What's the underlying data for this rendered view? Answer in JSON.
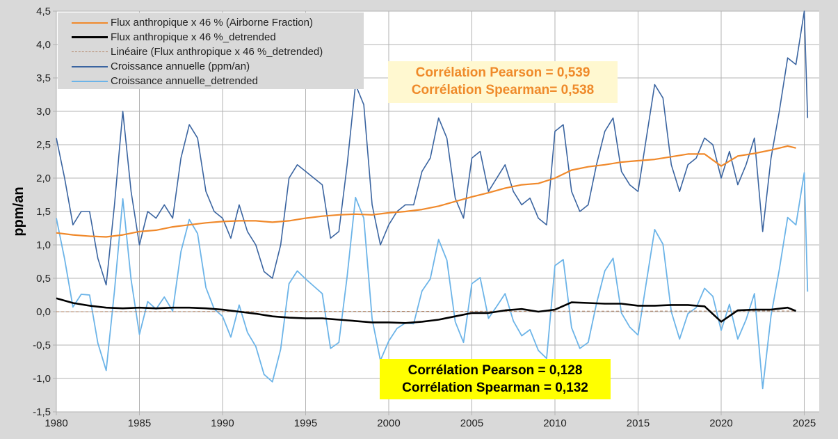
{
  "chart_data": {
    "type": "line",
    "ylabel": "ppm/an",
    "xlabel": "",
    "xlim": [
      1980,
      2025.9
    ],
    "ylim": [
      -1.5,
      4.5
    ],
    "grid": true,
    "legend_placement": "top-left",
    "x_ticks": [
      "1980",
      "1985",
      "1990",
      "1995",
      "2000",
      "2005",
      "2010",
      "2015",
      "2020",
      "2025"
    ],
    "y_ticks": [
      "4,5",
      "4,0",
      "3,5",
      "3,0",
      "2,5",
      "2,0",
      "1,5",
      "1,0",
      "0,5",
      "0,0",
      "-0,5",
      "-1,0",
      "-1,5"
    ],
    "series": [
      {
        "name": "Flux anthropique x 46 % (Airborne  Fraction)",
        "color": "#f0892b",
        "style": "solid",
        "x": [
          1980,
          1981,
          1982,
          1983,
          1984,
          1985,
          1986,
          1987,
          1988,
          1989,
          1990,
          1991,
          1992,
          1993,
          1994,
          1995,
          1996,
          1997,
          1998,
          1999,
          2000,
          2001,
          2002,
          2003,
          2004,
          2005,
          2006,
          2007,
          2008,
          2009,
          2010,
          2011,
          2012,
          2013,
          2014,
          2015,
          2016,
          2017,
          2018,
          2019,
          2020,
          2021,
          2022,
          2023,
          2024,
          2024.5
        ],
        "y": [
          1.18,
          1.15,
          1.13,
          1.12,
          1.15,
          1.2,
          1.22,
          1.27,
          1.3,
          1.33,
          1.35,
          1.36,
          1.36,
          1.34,
          1.36,
          1.4,
          1.43,
          1.45,
          1.46,
          1.45,
          1.48,
          1.5,
          1.53,
          1.58,
          1.65,
          1.72,
          1.78,
          1.85,
          1.9,
          1.92,
          2.0,
          2.12,
          2.17,
          2.2,
          2.24,
          2.26,
          2.28,
          2.32,
          2.36,
          2.36,
          2.18,
          2.33,
          2.37,
          2.42,
          2.48,
          2.45
        ]
      },
      {
        "name": "Flux anthropique x 46 %_detrended",
        "color": "#000000",
        "style": "solid",
        "x": [
          1980,
          1981,
          1982,
          1983,
          1984,
          1985,
          1986,
          1987,
          1988,
          1989,
          1990,
          1991,
          1992,
          1993,
          1994,
          1995,
          1996,
          1997,
          1998,
          1999,
          2000,
          2001,
          2002,
          2003,
          2004,
          2005,
          2006,
          2007,
          2008,
          2009,
          2010,
          2011,
          2012,
          2013,
          2014,
          2015,
          2016,
          2017,
          2018,
          2019,
          2020,
          2021,
          2022,
          2023,
          2024,
          2024.5
        ],
        "y": [
          0.2,
          0.13,
          0.09,
          0.06,
          0.05,
          0.06,
          0.05,
          0.06,
          0.06,
          0.05,
          0.03,
          0.0,
          -0.03,
          -0.07,
          -0.09,
          -0.1,
          -0.1,
          -0.12,
          -0.14,
          -0.16,
          -0.16,
          -0.17,
          -0.15,
          -0.12,
          -0.07,
          -0.02,
          -0.02,
          0.02,
          0.04,
          0.0,
          0.03,
          0.14,
          0.13,
          0.12,
          0.12,
          0.09,
          0.09,
          0.1,
          0.1,
          0.08,
          -0.15,
          0.02,
          0.03,
          0.03,
          0.06,
          0.01
        ]
      },
      {
        "name": "Linéaire (Flux anthropique x 46 %_detrended)",
        "color": "#b08060",
        "style": "dashed",
        "x": [
          1980,
          2024.5
        ],
        "y": [
          0,
          0.01
        ]
      },
      {
        "name": "Croissance annuelle (ppm/an)",
        "color": "#3a64a0",
        "style": "solid",
        "x": [
          1980,
          1980.5,
          1981,
          1981.5,
          1982,
          1982.5,
          1983,
          1983.5,
          1984,
          1984.5,
          1985,
          1985.5,
          1986,
          1986.5,
          1987,
          1987.5,
          1988,
          1988.5,
          1989,
          1989.5,
          1990,
          1990.5,
          1991,
          1991.5,
          1992,
          1992.5,
          1993,
          1993.5,
          1994,
          1994.5,
          1995,
          1995.5,
          1996,
          1996.5,
          1997,
          1997.5,
          1998,
          1998.5,
          1999,
          1999.5,
          2000,
          2000.5,
          2001,
          2001.5,
          2002,
          2002.5,
          2003,
          2003.5,
          2004,
          2004.5,
          2005,
          2005.5,
          2006,
          2006.5,
          2007,
          2007.5,
          2008,
          2008.5,
          2009,
          2009.5,
          2010,
          2010.5,
          2011,
          2011.5,
          2012,
          2012.5,
          2013,
          2013.5,
          2014,
          2014.5,
          2015,
          2015.5,
          2016,
          2016.5,
          2017,
          2017.5,
          2018,
          2018.5,
          2019,
          2019.5,
          2020,
          2020.5,
          2021,
          2021.5,
          2022,
          2022.5,
          2023,
          2023.5,
          2024,
          2024.5,
          2025,
          2025.2
        ],
        "y": [
          2.6,
          2.0,
          1.3,
          1.5,
          1.5,
          0.8,
          0.4,
          1.6,
          3.0,
          1.8,
          1.0,
          1.5,
          1.4,
          1.6,
          1.4,
          2.3,
          2.8,
          2.6,
          1.8,
          1.5,
          1.4,
          1.1,
          1.6,
          1.2,
          1.0,
          0.6,
          0.5,
          1.0,
          2.0,
          2.2,
          2.1,
          2.0,
          1.9,
          1.1,
          1.2,
          2.2,
          3.4,
          3.1,
          1.6,
          1.0,
          1.3,
          1.5,
          1.6,
          1.6,
          2.1,
          2.3,
          2.9,
          2.6,
          1.7,
          1.4,
          2.3,
          2.4,
          1.8,
          2.0,
          2.2,
          1.8,
          1.6,
          1.7,
          1.4,
          1.3,
          2.7,
          2.8,
          1.8,
          1.5,
          1.6,
          2.2,
          2.7,
          2.9,
          2.1,
          1.9,
          1.8,
          2.6,
          3.4,
          3.2,
          2.2,
          1.8,
          2.2,
          2.3,
          2.6,
          2.5,
          2.0,
          2.4,
          1.9,
          2.2,
          2.6,
          1.2,
          2.3,
          3.0,
          3.8,
          3.7,
          4.5,
          2.9
        ]
      },
      {
        "name": "Croissance annuelle_detrended",
        "color": "#6cb4e8",
        "style": "solid",
        "x": [
          1980,
          1980.5,
          1981,
          1981.5,
          1982,
          1982.5,
          1983,
          1983.5,
          1984,
          1984.5,
          1985,
          1985.5,
          1986,
          1986.5,
          1987,
          1987.5,
          1988,
          1988.5,
          1989,
          1989.5,
          1990,
          1990.5,
          1991,
          1991.5,
          1992,
          1992.5,
          1993,
          1993.5,
          1994,
          1994.5,
          1995,
          1995.5,
          1996,
          1996.5,
          1997,
          1997.5,
          1998,
          1998.5,
          1999,
          1999.5,
          2000,
          2000.5,
          2001,
          2001.5,
          2002,
          2002.5,
          2003,
          2003.5,
          2004,
          2004.5,
          2005,
          2005.5,
          2006,
          2006.5,
          2007,
          2007.5,
          2008,
          2008.5,
          2009,
          2009.5,
          2010,
          2010.5,
          2011,
          2011.5,
          2012,
          2012.5,
          2013,
          2013.5,
          2014,
          2014.5,
          2015,
          2015.5,
          2016,
          2016.5,
          2017,
          2017.5,
          2018,
          2018.5,
          2019,
          2019.5,
          2020,
          2020.5,
          2021,
          2021.5,
          2022,
          2022.5,
          2023,
          2023.5,
          2024,
          2024.5,
          2025,
          2025.2
        ],
        "y": [
          1.4,
          0.79,
          0.07,
          0.26,
          0.25,
          -0.47,
          -0.88,
          0.31,
          1.69,
          0.48,
          -0.34,
          0.15,
          0.04,
          0.22,
          0.01,
          0.9,
          1.38,
          1.17,
          0.36,
          0.04,
          -0.07,
          -0.38,
          0.1,
          -0.31,
          -0.52,
          -0.94,
          -1.05,
          -0.56,
          0.42,
          0.61,
          0.49,
          0.38,
          0.27,
          -0.55,
          -0.46,
          0.53,
          1.71,
          1.4,
          -0.11,
          -0.73,
          -0.44,
          -0.25,
          -0.17,
          -0.18,
          0.31,
          0.49,
          1.08,
          0.77,
          -0.15,
          -0.46,
          0.42,
          0.51,
          -0.1,
          0.08,
          0.27,
          -0.14,
          -0.36,
          -0.27,
          -0.58,
          -0.7,
          0.69,
          0.78,
          -0.24,
          -0.55,
          -0.46,
          0.12,
          0.61,
          0.8,
          -0.02,
          -0.23,
          -0.35,
          0.44,
          1.23,
          1.01,
          0.0,
          -0.41,
          -0.03,
          0.06,
          0.35,
          0.23,
          -0.28,
          0.11,
          -0.41,
          -0.12,
          0.27,
          -1.15,
          -0.06,
          0.63,
          1.41,
          1.3,
          2.08,
          0.3
        ]
      }
    ],
    "annotations": [
      {
        "lines": [
          "Corrélation Pearson = 0,539",
          "Corrélation Spearman= 0,538"
        ],
        "color": "#ef8a2a",
        "background": "#fff8d0"
      },
      {
        "lines": [
          "Corrélation Pearson = 0,128",
          "Corrélation Spearman = 0,132"
        ],
        "color": "#000000",
        "background": "#ffff00"
      }
    ]
  }
}
